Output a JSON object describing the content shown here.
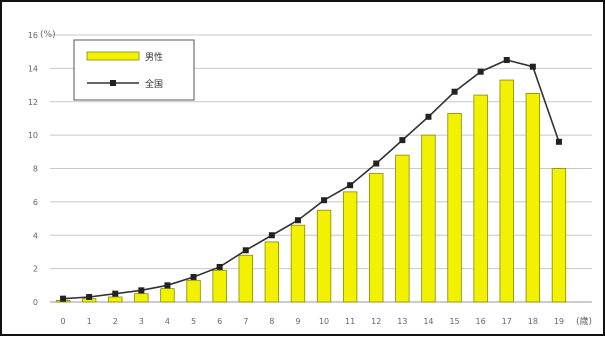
{
  "chart_data": {
    "type": "bar",
    "categories": [
      "0",
      "1",
      "2",
      "3",
      "4",
      "5",
      "6",
      "7",
      "8",
      "9",
      "10",
      "11",
      "12",
      "13",
      "14",
      "15",
      "16",
      "17",
      "18",
      "19"
    ],
    "series": [
      {
        "name": "男性",
        "kind": "bar",
        "color": "#f2f200",
        "values": [
          0.1,
          0.2,
          0.3,
          0.5,
          0.8,
          1.3,
          1.9,
          2.8,
          3.6,
          4.6,
          5.5,
          6.6,
          7.7,
          8.8,
          10.0,
          11.3,
          12.4,
          13.3,
          12.5,
          8.0
        ]
      },
      {
        "name": "全国",
        "kind": "line",
        "color": "#333333",
        "values": [
          0.2,
          0.3,
          0.5,
          0.7,
          1.0,
          1.5,
          2.1,
          3.1,
          4.0,
          4.9,
          6.1,
          7.0,
          8.3,
          9.7,
          11.1,
          12.6,
          13.8,
          14.5,
          14.1,
          9.6
        ]
      }
    ],
    "y_ticks": [
      "0",
      "2",
      "4",
      "6",
      "8",
      "10",
      "12",
      "14",
      "16"
    ],
    "ylim": [
      0,
      16
    ],
    "y_unit": "(%)",
    "x_unit": "(歳)",
    "grid": true,
    "legend_position": "top-left"
  }
}
